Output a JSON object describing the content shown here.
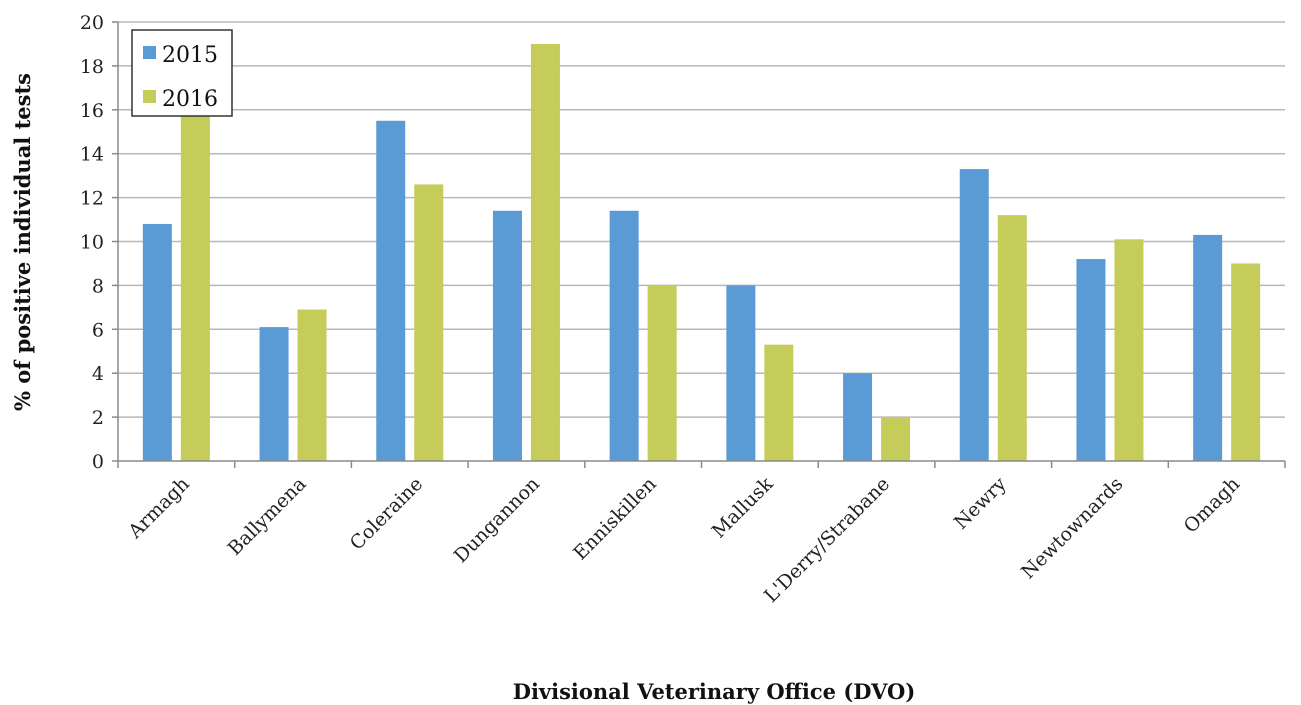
{
  "chart_data": {
    "type": "bar",
    "title": "",
    "xlabel": "Divisional Veterinary Office (DVO)",
    "ylabel": "% of positive individual tests",
    "ylim": [
      0,
      20
    ],
    "yticks": [
      0,
      2,
      4,
      6,
      8,
      10,
      12,
      14,
      16,
      18,
      20
    ],
    "grid": true,
    "legend_position": "top-left",
    "categories": [
      "Armagh",
      "Ballymena",
      "Coleraine",
      "Dungannon",
      "Enniskillen",
      "Mallusk",
      "L'Derry/Strabane",
      "Newry",
      "Newtownards",
      "Omagh"
    ],
    "series": [
      {
        "name": "2015",
        "color": "#5b9bd5",
        "values": [
          10.8,
          6.1,
          15.5,
          11.4,
          11.4,
          8.0,
          4.0,
          13.3,
          9.2,
          10.3
        ]
      },
      {
        "name": "2016",
        "color": "#c5cc5a",
        "values": [
          16.0,
          6.9,
          12.6,
          19.0,
          8.0,
          5.3,
          2.0,
          11.2,
          10.1,
          9.0
        ]
      }
    ]
  }
}
